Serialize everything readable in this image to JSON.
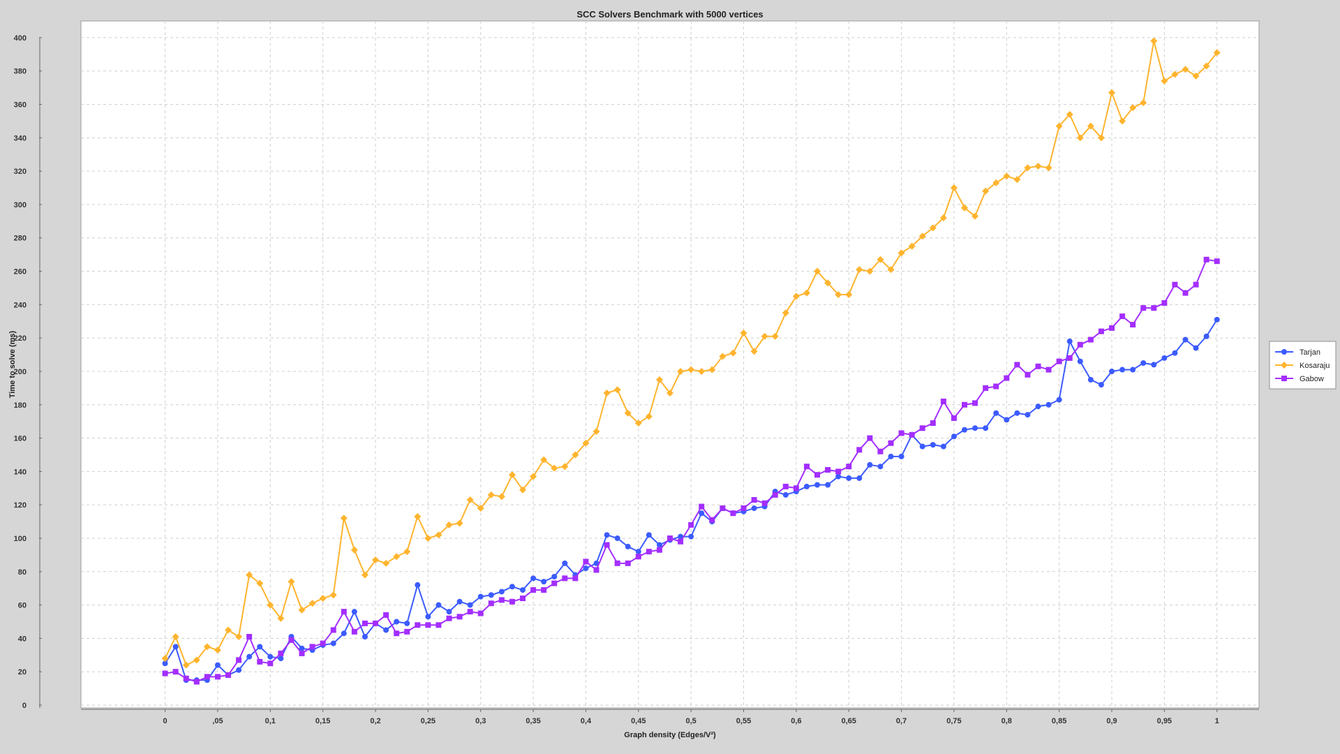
{
  "chart_data": {
    "type": "line",
    "title": "SCC Solvers Benchmark with 5000 vertices",
    "xlabel": "Graph density (Edges/V²)",
    "ylabel": "Time to solve (ms)",
    "xlim": [
      -0.08,
      1.04
    ],
    "ylim": [
      0,
      410
    ],
    "xticks": [
      0,
      0.05,
      0.1,
      0.15,
      0.2,
      0.25,
      0.3,
      0.35,
      0.4,
      0.45,
      0.5,
      0.55,
      0.6,
      0.65,
      0.7,
      0.75,
      0.8,
      0.85,
      0.9,
      0.95,
      1
    ],
    "xtick_labels": [
      "0",
      ",05",
      "0,1",
      "0,15",
      "0,2",
      "0,25",
      "0,3",
      "0,35",
      "0,4",
      "0,45",
      "0,5",
      "0,55",
      "0,6",
      "0,65",
      "0,7",
      "0,75",
      "0,8",
      "0,85",
      "0,9",
      "0,95",
      "1"
    ],
    "yticks": [
      0,
      20,
      40,
      60,
      80,
      100,
      120,
      140,
      160,
      180,
      200,
      220,
      240,
      260,
      280,
      300,
      320,
      340,
      360,
      380,
      400
    ],
    "ytick_labels": [
      "0",
      "20",
      "40",
      "60",
      "80",
      "100",
      "120",
      "140",
      "160",
      "180",
      "200",
      "220",
      "240",
      "260",
      "280",
      "300",
      "320",
      "340",
      "360",
      "380",
      "400"
    ],
    "grid": true,
    "legend_position": "right",
    "x": [
      0,
      0.01,
      0.02,
      0.03,
      0.04,
      0.05,
      0.06,
      0.07,
      0.08,
      0.09,
      0.1,
      0.11,
      0.12,
      0.13,
      0.14,
      0.15,
      0.16,
      0.17,
      0.18,
      0.19,
      0.2,
      0.21,
      0.22,
      0.23,
      0.24,
      0.25,
      0.26,
      0.27,
      0.28,
      0.29,
      0.3,
      0.31,
      0.32,
      0.33,
      0.34,
      0.35,
      0.36,
      0.37,
      0.38,
      0.39,
      0.4,
      0.41,
      0.42,
      0.43,
      0.44,
      0.45,
      0.46,
      0.47,
      0.48,
      0.49,
      0.5,
      0.51,
      0.52,
      0.53,
      0.54,
      0.55,
      0.56,
      0.57,
      0.58,
      0.59,
      0.6,
      0.61,
      0.62,
      0.63,
      0.64,
      0.65,
      0.66,
      0.67,
      0.68,
      0.69,
      0.7,
      0.71,
      0.72,
      0.73,
      0.74,
      0.75,
      0.76,
      0.77,
      0.78,
      0.79,
      0.8,
      0.81,
      0.82,
      0.83,
      0.84,
      0.85,
      0.86,
      0.87,
      0.88,
      0.89,
      0.9,
      0.91,
      0.92,
      0.93,
      0.94,
      0.95,
      0.96,
      0.97,
      0.98,
      0.99,
      1
    ],
    "series": [
      {
        "name": "Tarjan",
        "color": "#3b5bff",
        "marker": "circle",
        "values": [
          25,
          35,
          15,
          15,
          15,
          24,
          18,
          21,
          29,
          35,
          29,
          28,
          41,
          34,
          33,
          36,
          37,
          43,
          56,
          41,
          49,
          45,
          50,
          49,
          72,
          53,
          60,
          56,
          62,
          60,
          65,
          66,
          68,
          71,
          69,
          76,
          74,
          77,
          85,
          78,
          82,
          85,
          102,
          100,
          95,
          92,
          102,
          96,
          99,
          101,
          101,
          115,
          110,
          118,
          115,
          116,
          118,
          119,
          128,
          126,
          128,
          131,
          132,
          132,
          137,
          136,
          136,
          144,
          143,
          149,
          149,
          162,
          155,
          156,
          155,
          161,
          165,
          166,
          166,
          175,
          171,
          175,
          174,
          179,
          180,
          183,
          218,
          206,
          195,
          192,
          200,
          201,
          201,
          205,
          204,
          208,
          211,
          219,
          214,
          221,
          231
        ]
      },
      {
        "name": "Kosaraju",
        "color": "#ffb42e",
        "marker": "diamond",
        "values": [
          28,
          41,
          24,
          27,
          35,
          33,
          45,
          41,
          78,
          73,
          60,
          52,
          74,
          57,
          61,
          64,
          66,
          112,
          93,
          78,
          87,
          85,
          89,
          92,
          113,
          100,
          102,
          108,
          109,
          123,
          118,
          126,
          125,
          138,
          129,
          137,
          147,
          142,
          143,
          150,
          157,
          164,
          187,
          189,
          175,
          169,
          173,
          195,
          187,
          200,
          201,
          200,
          201,
          209,
          211,
          223,
          212,
          221,
          221,
          235,
          245,
          247,
          260,
          253,
          246,
          246,
          261,
          260,
          267,
          261,
          271,
          275,
          281,
          286,
          292,
          310,
          298,
          293,
          308,
          313,
          317,
          315,
          322,
          323,
          322,
          347,
          354,
          340,
          347,
          340,
          367,
          350,
          358,
          361,
          398,
          374,
          378,
          381,
          377,
          383,
          391
        ]
      },
      {
        "name": "Gabow",
        "color": "#a32eff",
        "marker": "square",
        "values": [
          19,
          20,
          16,
          14,
          17,
          17,
          18,
          27,
          41,
          26,
          25,
          31,
          39,
          31,
          35,
          37,
          45,
          56,
          44,
          49,
          49,
          54,
          43,
          44,
          48,
          48,
          48,
          52,
          53,
          56,
          55,
          61,
          63,
          62,
          64,
          69,
          69,
          73,
          76,
          76,
          86,
          81,
          96,
          85,
          85,
          89,
          92,
          93,
          100,
          98,
          108,
          119,
          111,
          118,
          115,
          118,
          123,
          121,
          126,
          131,
          130,
          143,
          138,
          141,
          140,
          143,
          153,
          160,
          152,
          157,
          163,
          162,
          166,
          169,
          182,
          172,
          180,
          181,
          190,
          191,
          196,
          204,
          198,
          203,
          201,
          206,
          208,
          216,
          219,
          224,
          226,
          233,
          228,
          238,
          238,
          241,
          252,
          247,
          252,
          267,
          266
        ]
      }
    ]
  }
}
